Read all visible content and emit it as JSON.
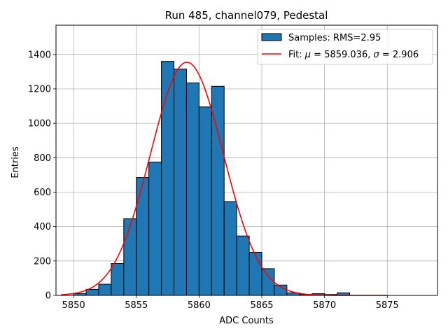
{
  "chart_data": {
    "type": "bar",
    "title": "Run 485, channel079, Pedestal",
    "xlabel": "ADC Counts",
    "ylabel": "Entries",
    "xlim": [
      5848.6,
      5879.0
    ],
    "ylim": [
      0,
      1570
    ],
    "xticks": [
      5850,
      5855,
      5860,
      5865,
      5870,
      5875
    ],
    "yticks": [
      0,
      200,
      400,
      600,
      800,
      1000,
      1200,
      1400
    ],
    "grid": true,
    "legend_position": "top-right",
    "histogram": {
      "name": "Samples: RMS=2.95",
      "color": "#1f77b4",
      "bin_width": 1,
      "bin_edges_start": 5850,
      "counts": [
        10,
        35,
        65,
        185,
        445,
        685,
        775,
        1360,
        1315,
        1235,
        1095,
        1215,
        545,
        345,
        250,
        155,
        60,
        15,
        5,
        10,
        5,
        15
      ]
    },
    "fit": {
      "name_prefix": "Fit: ",
      "mu_symbol": "μ",
      "mu_text": " = 5859.036, ",
      "sigma_symbol": "σ",
      "sigma_text": " = 2.906",
      "mu": 5859.036,
      "sigma": 2.906,
      "amplitude": 1355,
      "x_range": [
        5849,
        5875
      ],
      "color": "#ff0000"
    }
  }
}
